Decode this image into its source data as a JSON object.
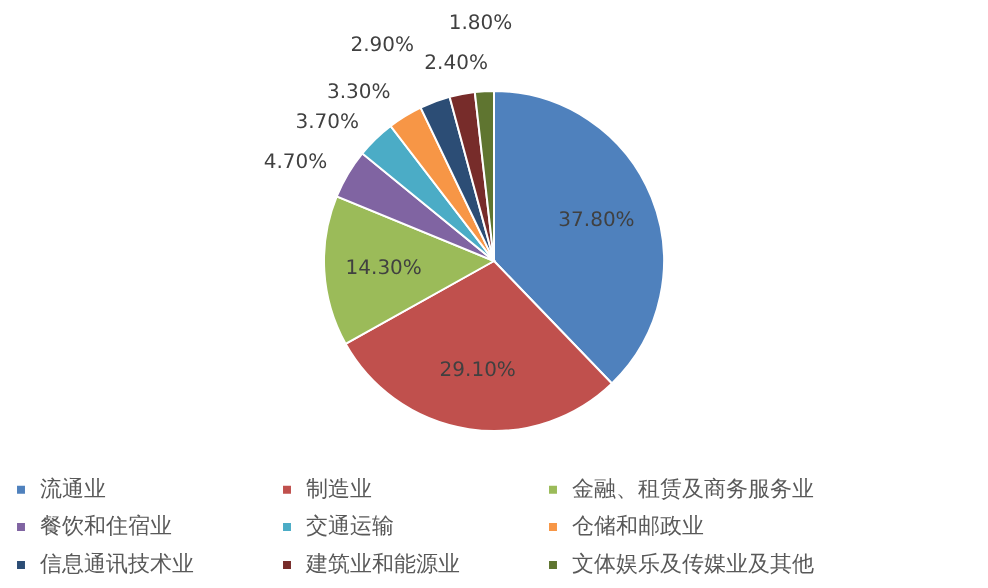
{
  "chart_data": {
    "type": "pie",
    "categories": [
      "流通业",
      "制造业",
      "金融、租赁及商务服务业",
      "餐饮和住宿业",
      "交通运输",
      "仓储和邮政业",
      "信息通讯技术业",
      "建筑业和能源业",
      "文体娱乐及传媒业及其他"
    ],
    "values": [
      37.8,
      29.1,
      14.3,
      4.7,
      3.7,
      3.3,
      2.9,
      2.4,
      1.8
    ],
    "value_labels": [
      "37.80%",
      "29.10%",
      "14.30%",
      "4.70%",
      "3.70%",
      "3.30%",
      "2.90%",
      "2.40%",
      "1.80%"
    ],
    "colors": [
      "#4f81bd",
      "#c0504d",
      "#9bbb59",
      "#8064a2",
      "#4bacc6",
      "#f79646",
      "#2c4d75",
      "#772c2a",
      "#5f7530"
    ],
    "legend": "bottom"
  }
}
